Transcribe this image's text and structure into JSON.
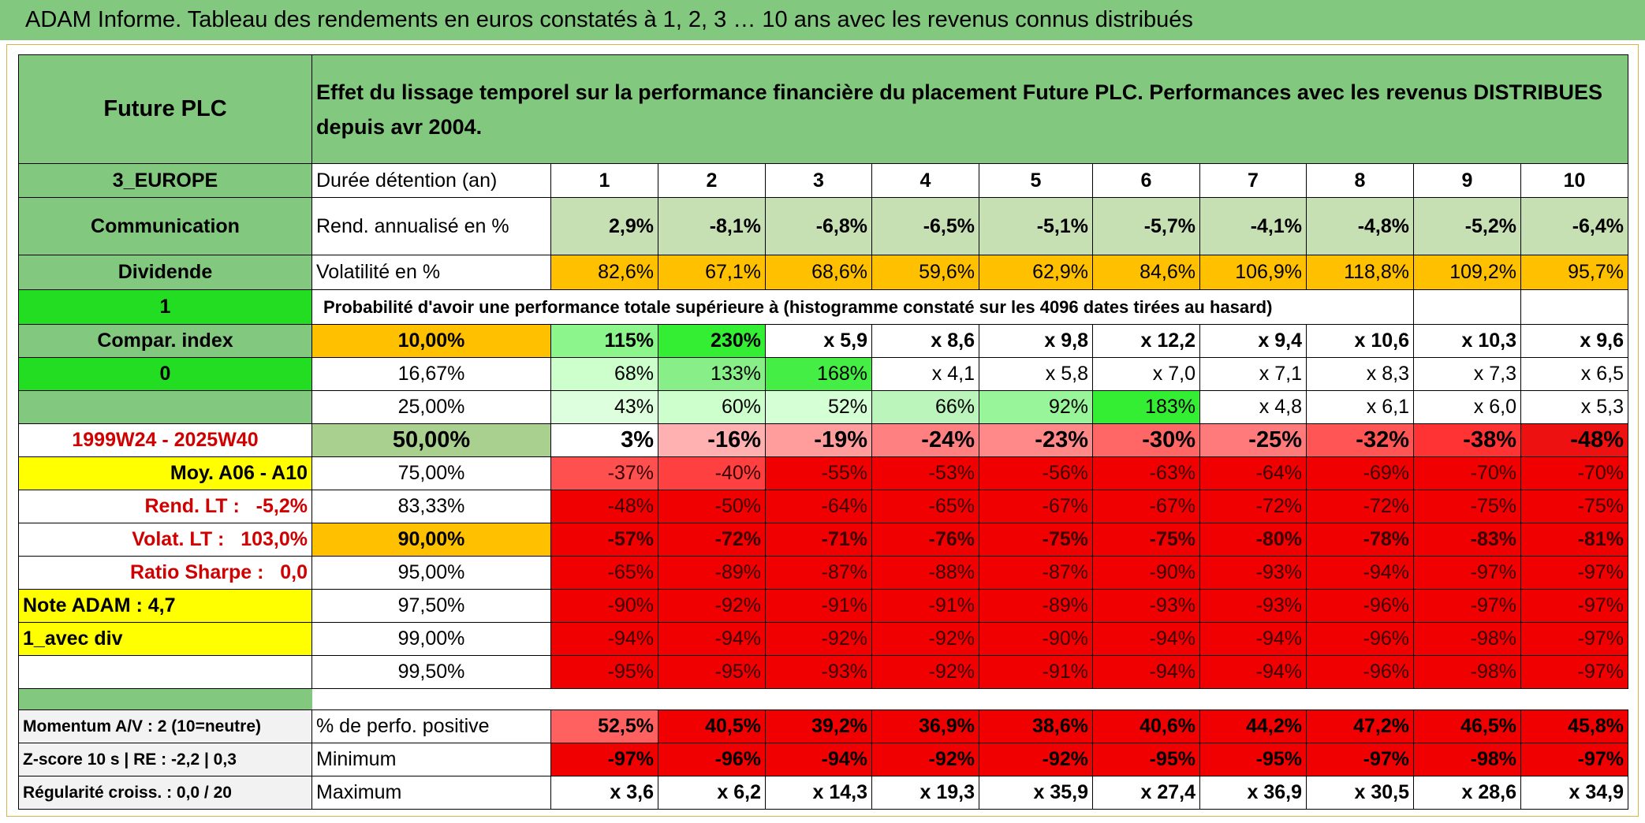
{
  "header": {
    "title": "ADAM Informe. Tableau des rendements en euros constatés à 1, 2, 3 … 10 ans avec les revenus connus distribués"
  },
  "table": {
    "fund_name": "Future PLC",
    "description": "Effet du lissage temporel sur la performance financière du placement Future PLC. Performances avec les revenus DISTRIBUES depuis avr 2004.",
    "rows": [
      [
        "3_EUROPE",
        "Durée détention (an)",
        "1",
        "2",
        "3",
        "4",
        "5",
        "6",
        "7",
        "8",
        "9",
        "10"
      ],
      [
        "Communication",
        "Rend. annualisé en %",
        "2,9%",
        "-8,1%",
        "-6,8%",
        "-6,5%",
        "-5,1%",
        "-5,7%",
        "-4,1%",
        "-4,8%",
        "-5,2%",
        "-6,4%"
      ],
      [
        "Dividende",
        "Volatilité en %",
        "82,6%",
        "67,1%",
        "68,6%",
        "59,6%",
        "62,9%",
        "84,6%",
        "106,9%",
        "118,8%",
        "109,2%",
        "95,7%"
      ],
      [
        "1",
        "Probabilité d'avoir une performance totale supérieure à (histogramme constaté sur les 4096 dates tirées au hasard)"
      ],
      [
        "Compar. index",
        "10,00%",
        "115%",
        "230%",
        "x 5,9",
        "x 8,6",
        "x 9,8",
        "x 12,2",
        "x 9,4",
        "x 10,6",
        "x 10,3",
        "x 9,6"
      ],
      [
        "0",
        "16,67%",
        "68%",
        "133%",
        "168%",
        "x 4,1",
        "x 5,8",
        "x 7,0",
        "x 7,1",
        "x 8,3",
        "x 7,3",
        "x 6,5"
      ],
      [
        null,
        "25,00%",
        "43%",
        "60%",
        "52%",
        "66%",
        "92%",
        "183%",
        "x 4,8",
        "x 6,1",
        "x 6,0",
        "x 5,3"
      ],
      [
        "1999W24 - 2025W40",
        "50,00%",
        "3%",
        "-16%",
        "-19%",
        "-24%",
        "-23%",
        "-30%",
        "-25%",
        "-32%",
        "-38%",
        "-48%"
      ],
      [
        "Moy. A06 - A10",
        "75,00%",
        "-37%",
        "-40%",
        "-55%",
        "-53%",
        "-56%",
        "-63%",
        "-64%",
        "-69%",
        "-70%",
        "-70%"
      ],
      [
        "Rend. LT :   -5,2%",
        "83,33%",
        "-48%",
        "-50%",
        "-64%",
        "-65%",
        "-67%",
        "-67%",
        "-72%",
        "-72%",
        "-75%",
        "-75%"
      ],
      [
        "Volat. LT :   103,0%",
        "90,00%",
        "-57%",
        "-72%",
        "-71%",
        "-76%",
        "-75%",
        "-75%",
        "-80%",
        "-78%",
        "-83%",
        "-81%"
      ],
      [
        "Ratio Sharpe :   0,0",
        "95,00%",
        "-65%",
        "-89%",
        "-87%",
        "-88%",
        "-87%",
        "-90%",
        "-93%",
        "-94%",
        "-97%",
        "-97%"
      ],
      [
        "Note ADAM : 4,7",
        "97,50%",
        "-90%",
        "-92%",
        "-91%",
        "-91%",
        "-89%",
        "-93%",
        "-93%",
        "-96%",
        "-97%",
        "-97%"
      ],
      [
        "1_avec div",
        "99,00%",
        "-94%",
        "-94%",
        "-92%",
        "-92%",
        "-90%",
        "-94%",
        "-94%",
        "-96%",
        "-98%",
        "-97%"
      ],
      [
        null,
        "99,50%",
        "-95%",
        "-95%",
        "-93%",
        "-92%",
        "-91%",
        "-94%",
        "-94%",
        "-96%",
        "-98%",
        "-97%"
      ]
    ],
    "summary_rows": [
      [
        "Momentum A/V : 2 (10=neutre)",
        "% de perfo. positive",
        "52,5%",
        "40,5%",
        "39,2%",
        "36,9%",
        "38,6%",
        "40,6%",
        "44,2%",
        "47,2%",
        "46,5%",
        "45,8%"
      ],
      [
        "Z-score 10 s | RE : -2,2 | 0,3",
        "Minimum",
        "-97%",
        "-96%",
        "-94%",
        "-92%",
        "-92%",
        "-95%",
        "-95%",
        "-97%",
        "-98%",
        "-97%"
      ],
      [
        "Régularité croiss. : 0,0 / 20",
        "Maximum",
        "x 3,6",
        "x 6,2",
        "x 14,3",
        "x 19,3",
        "x 35,9",
        "x 27,4",
        "x 36,9",
        "x 30,5",
        "x 28,6",
        "x 34,9"
      ]
    ]
  }
}
